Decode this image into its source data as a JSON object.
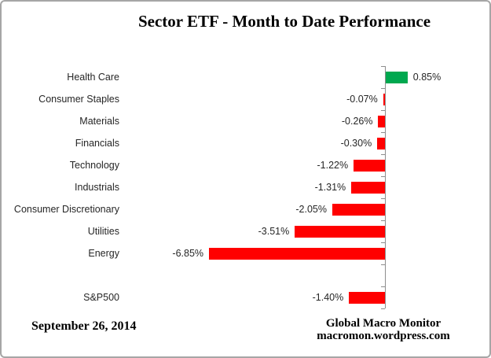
{
  "window": {
    "background_color": "#FFFFFF",
    "border_color": "#A6A6A6"
  },
  "title": "Sector ETF - Month to Date Performance",
  "chart_data": {
    "type": "bar",
    "orientation": "horizontal",
    "title": "Sector ETF - Month to Date Performance",
    "categories": [
      "Health Care",
      "Consumer Staples",
      "Materials",
      "Financials",
      "Technology",
      "Industrials",
      "Consumer Discretionary",
      "Utilities",
      "Energy",
      "",
      "S&P500"
    ],
    "values": [
      0.85,
      -0.07,
      -0.26,
      -0.3,
      -1.22,
      -1.31,
      -2.05,
      -3.51,
      -6.85,
      null,
      -1.4
    ],
    "value_labels": [
      "0.85%",
      "-0.07%",
      "-0.26%",
      "-0.30%",
      "-1.22%",
      "-1.31%",
      "-2.05%",
      "-3.51%",
      "-6.85%",
      "",
      "-1.40%"
    ],
    "value_label_position": "outside-end",
    "positive_color": "#00A84F",
    "negative_color": "#FF0000",
    "axis_color": "#8E8E8E",
    "text_color": "#262626",
    "baseline": 0,
    "xlim": [
      -7.5,
      1.5
    ],
    "grid": false,
    "legend": false
  },
  "footer": {
    "date": "September 26, 2014",
    "source_line1": "Global Macro Monitor",
    "source_line2": "macromon.wordpress.com"
  }
}
